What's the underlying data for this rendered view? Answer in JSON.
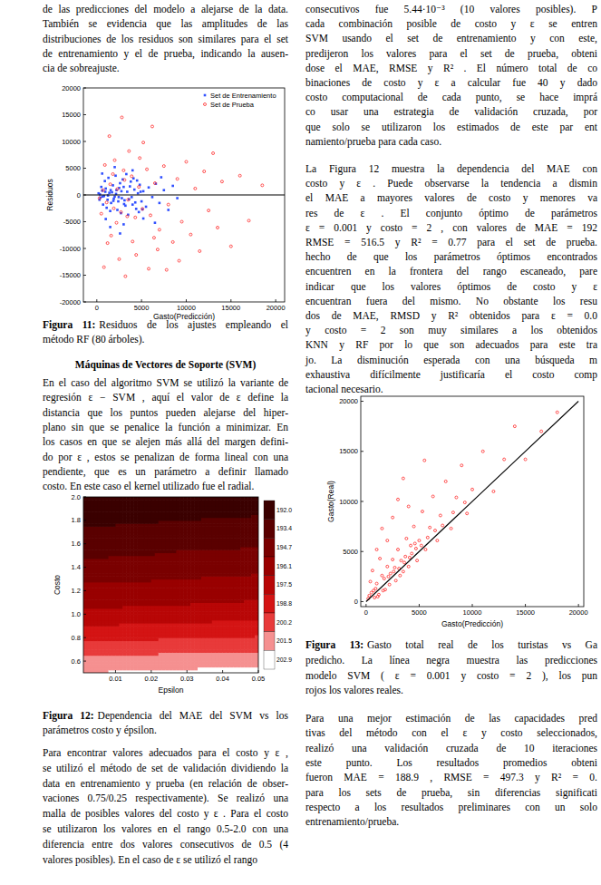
{
  "text": {
    "left_p0": [
      "de las predicciones del modelo a alejarse de la data.",
      "También se evidencia que las amplitudes de las",
      "distribuciones de los residuos son similares para el set",
      "de entrenamiento y el de prueba, indicando la ausen-",
      "cia de sobreajuste."
    ],
    "fig11_caption": {
      "label": "Figura 11:",
      "lines": [
        "Residuos de los ajustes empleando el",
        "método RF (80 árboles)."
      ]
    },
    "svm_heading": "Máquinas de Vectores de Soporte (SVM)",
    "left_p1": [
      "En el caso del algoritmo SVM se utilizó la variante de",
      "regresión ε − SVM , aquí el valor de ε define la",
      "distancia que los puntos pueden alejarse del hiper-",
      "plano sin que se penalice la función a minimizar. En",
      "los casos en que se alejen más allá del margen defini-",
      "do por ε , estos se penalizan de forma lineal con una",
      "pendiente, que es un parámetro a definir llamado",
      "costo. En este caso el kernel utilizado fue el radial."
    ],
    "fig12_caption": {
      "label": "Figura 12:",
      "lines": [
        "Dependencia del MAE del SVM vs los",
        "parámetros costo y épsilon."
      ]
    },
    "left_p2": [
      "Para encontrar valores adecuados para el costo y ε ,",
      "se utilizó el método de set de validación dividiendo la",
      "data en entrenamiento y prueba (en relación de obser-",
      "vaciones 0.75/0.25 respectivamente). Se realizó una",
      "malla de posibles valores del costo y ε . Para el costo",
      "se utilizaron los valores en el rango 0.5-2.0 con una",
      "diferencia entre dos valores consecutivos de 0.5 (4",
      "valores posibles). En el caso de ε se utilizó el rango"
    ],
    "right_p1": [
      "consecutivos fue 5.44·10⁻³ (10 valores posibles). P",
      "cada combinación posible de costo y ε se entren",
      "SVM usando el set de entrenamiento y con este,",
      "predijeron los valores para el set de prueba, obteni",
      "dose el MAE, RMSE y R² . El número total de co",
      "binaciones de costo y ε a calcular fue 40 y dado",
      "costo computacional de cada punto, se hace imprá",
      "co usar una estrategia de validación cruzada, por",
      "que solo se utilizaron los estimados de este par ent",
      "namiento/prueba para cada caso."
    ],
    "right_p2": [
      "La Figura 12 muestra la dependencia del MAE con",
      "costo y ε . Puede observarse la tendencia a dismin",
      "el MAE a mayores valores de costo y menores va",
      "res de ε . El conjunto óptimo de parámetros",
      "ε = 0.001 y costo = 2 , con valores de MAE = 192",
      "RMSE = 516.5 y R² = 0.77 para el set de prueba.",
      "hecho de que los parámetros óptimos encontrados",
      "encuentren en la frontera del rango escaneado, pare",
      "indicar que los valores óptimos de costo y ε",
      "encuentran fuera del mismo. No obstante los resu",
      "dos de MAE, RMSD y R² obtenidos para ε = 0.0",
      "y costo = 2 son muy similares a los obtenidos",
      "KNN y RF por lo que son adecuados para este tra",
      "jo. La disminución esperada con una búsqueda m",
      "exhaustiva difícilmente justificaría el costo comp",
      "tacional necesario."
    ],
    "fig13_caption": {
      "label": "Figura 13:",
      "lines": [
        "Gasto total real de los turistas vs Ga",
        "predicho. La línea negra muestra las predicciones",
        "modelo SVM ( ε = 0.001 y costo = 2 ), los pun",
        "rojos los valores reales."
      ]
    },
    "right_p3": [
      "Para una mejor estimación de las capacidades pred",
      "tivas del método con el ε y costo seleccionados,",
      "realizó una validación cruzada de 10 iteraciones",
      "este punto. Los resultados promedios obteni",
      "fueron MAE = 188.9 , RMSE = 497.3 y R² = 0.",
      "para los sets de prueba, sin diferencias significati",
      "respecto a los resultados preliminares con un solo",
      "entrenamiento/prueba."
    ]
  },
  "chart_data": [
    {
      "type": "scatter",
      "xlabel": "Gasto(Predicción)",
      "ylabel": "Residuos",
      "xlim": [
        -1500,
        21000
      ],
      "ylim": [
        -20000,
        20000
      ],
      "xticks": [
        0,
        5000,
        10000,
        15000,
        20000
      ],
      "yticks": [
        -20000,
        -15000,
        -10000,
        -5000,
        0,
        5000,
        10000,
        15000,
        20000
      ],
      "legend": "top-right",
      "series": [
        {
          "name": "Set de Entrenamiento",
          "color": "#3050ff",
          "marker": "square",
          "x": [
            200,
            400,
            600,
            800,
            1000,
            1200,
            1400,
            1600,
            1800,
            2000,
            2200,
            2400,
            2600,
            2800,
            3000,
            3200,
            3400,
            3600,
            3800,
            4000,
            4200,
            4400,
            4600,
            4800,
            5000,
            5200,
            5500,
            5800,
            6200,
            6600,
            7000,
            7500,
            8000,
            8500,
            9000,
            300,
            500,
            700,
            900,
            1100,
            1300,
            1500,
            1700,
            1900,
            2100,
            2300,
            2500,
            2700,
            2900,
            3100,
            3300,
            3500,
            3700,
            3900,
            4100,
            4300,
            4500,
            4700,
            4900,
            5100,
            350,
            650,
            950,
            1250,
            1550,
            1850,
            2150,
            2450,
            2750,
            3050,
            1000,
            2000,
            3000,
            600,
            1500,
            2600,
            4000,
            5200,
            6500,
            7200
          ],
          "values": [
            300,
            -500,
            800,
            -200,
            1200,
            -900,
            400,
            -1500,
            1800,
            -300,
            900,
            -1200,
            2200,
            -600,
            1500,
            -2000,
            600,
            -800,
            2500,
            -1800,
            1000,
            -2600,
            300,
            1900,
            -1200,
            700,
            -2200,
            1400,
            -400,
            2100,
            -1500,
            900,
            -2800,
            1700,
            -600,
            -900,
            1500,
            -1800,
            2600,
            -2400,
            3200,
            -3000,
            500,
            -700,
            3600,
            -2800,
            1300,
            -3400,
            2900,
            -1000,
            3900,
            -3700,
            1600,
            -400,
            3100,
            -1400,
            2700,
            -3200,
            600,
            -2700,
            100,
            -300,
            600,
            -100,
            900,
            -1100,
            200,
            -400,
            700,
            -1700,
            -4500,
            5200,
            -5500,
            4000,
            -6000,
            -7200,
            4600,
            -4400,
            -5200,
            3300
          ]
        },
        {
          "name": "Set de Prueba",
          "color": "#ff2a2a",
          "marker": "circle",
          "x": [
            300,
            700,
            1100,
            1500,
            1900,
            2300,
            2700,
            3100,
            3500,
            3900,
            4300,
            4700,
            5100,
            5600,
            6000,
            6500,
            7000,
            7500,
            8000,
            8500,
            9000,
            9500,
            10000,
            10500,
            11000,
            11500,
            12000,
            12500,
            13000,
            13500,
            14000,
            15000,
            16000,
            17000,
            18500,
            1200,
            2500,
            3200,
            800,
            4400,
            5800,
            6800,
            2000,
            3600,
            1400,
            5200,
            900,
            6200,
            2800,
            7800,
            1600,
            4000,
            3000,
            500,
            1800,
            2200,
            3400,
            4800,
            6400,
            9200
          ],
          "values": [
            -600,
            900,
            -1400,
            2000,
            -2500,
            1100,
            -3200,
            2800,
            -900,
            3500,
            -4200,
            1500,
            -2600,
            4800,
            -3800,
            2200,
            -6500,
            5400,
            -1800,
            -8800,
            3000,
            -5000,
            6200,
            -7400,
            1200,
            -10500,
            4400,
            -2900,
            7800,
            -6100,
            2500,
            -9600,
            3600,
            -4800,
            1800,
            -9000,
            -12000,
            -15200,
            -13500,
            -11200,
            -13800,
            -10200,
            6500,
            8200,
            11000,
            9800,
            5600,
            12800,
            14500,
            -14000,
            -7600,
            -8700,
            4600,
            -3500,
            3900,
            -5200,
            -4000,
            6900,
            -8000,
            -12300
          ]
        },
        {
          "type": "line",
          "color": "#000000",
          "x": [
            -1500,
            21000
          ],
          "values": [
            0,
            0
          ]
        }
      ]
    },
    {
      "type": "heatmap",
      "xlabel": "Epsilon",
      "ylabel": "Costo",
      "xlim": [
        0.001,
        0.05
      ],
      "ylim": [
        0.5,
        2
      ],
      "xticks": [
        0.01,
        0.02,
        0.03,
        0.04,
        0.05
      ],
      "yticks": [
        0.6,
        0.8,
        {
          "value": 1,
          "label": "1.0"
        },
        1.2,
        1.4,
        1.6,
        1.8,
        {
          "value": 2,
          "label": "2.0"
        }
      ],
      "x": [
        0.001,
        0.00644,
        0.01189,
        0.01733,
        0.02278,
        0.02822,
        0.03367,
        0.03911,
        0.04456,
        0.05
      ],
      "y": [
        0.5,
        1,
        1.5,
        2
      ],
      "cells": [
        [
          203.0,
          203.0,
          203.1,
          203.1,
          203.2,
          203.2,
          203.3,
          203.3,
          203.4,
          203.4
        ],
        [
          197.8,
          197.8,
          197.9,
          197.9,
          198.0,
          198.0,
          198.1,
          198.2,
          198.2,
          198.3
        ],
        [
          194.6,
          194.6,
          194.7,
          194.7,
          194.8,
          194.9,
          194.9,
          195.0,
          195.0,
          195.1
        ],
        [
          192.2,
          192.2,
          192.3,
          192.3,
          192.4,
          192.4,
          192.5,
          192.5,
          192.6,
          192.6
        ]
      ],
      "colorbar": {
        "ticks": [
          {
            "value": 192,
            "label": "192.0"
          },
          193.4,
          194.7,
          196.1,
          197.5,
          198.8,
          200.2,
          201.5,
          202.9
        ],
        "colors": [
          "#3a0000",
          "#5a0000",
          "#7a0000",
          "#990000",
          "#b80606",
          "#d41414",
          "#e83a3a",
          "#f59090",
          "#ffffff"
        ]
      }
    },
    {
      "type": "scatter",
      "xlabel": "Gasto(Predicción)",
      "ylabel": "Gasto(Real)",
      "xlim": [
        -500,
        20500
      ],
      "ylim": [
        -500,
        20500
      ],
      "xticks": [
        0,
        5000,
        10000,
        15000,
        20000
      ],
      "yticks": [
        0,
        5000,
        10000,
        15000,
        20000
      ],
      "series": [
        {
          "color": "#ff2a2a",
          "marker": "circle",
          "x": [
            200,
            500,
            800,
            1000,
            1200,
            1500,
            1800,
            2000,
            2200,
            2500,
            2800,
            3000,
            3200,
            3500,
            3800,
            4000,
            4300,
            4500,
            4800,
            5000,
            5300,
            5600,
            6000,
            6300,
            6700,
            7000,
            7500,
            8000,
            8500,
            9000,
            9500,
            10000,
            11000,
            12000,
            13000,
            14000,
            15000,
            16500,
            18000,
            1000,
            1500,
            2500,
            3000,
            2000,
            600,
            1300,
            3500,
            4000,
            5500,
            400,
            700,
            1600,
            2300,
            2700,
            3300,
            3700,
            4200,
            4600,
            300,
            900,
            1100,
            1700,
            2100,
            2600,
            3100,
            3600,
            4100,
            4700,
            5200,
            5800,
            6500,
            7200,
            8200,
            9300
          ],
          "values": [
            300,
            900,
            400,
            1800,
            700,
            2600,
            1200,
            3500,
            1700,
            4200,
            2100,
            5200,
            2600,
            3000,
            6300,
            3500,
            4800,
            7500,
            4100,
            6100,
            9000,
            5200,
            7400,
            10500,
            6100,
            8600,
            12000,
            7300,
            10400,
            13600,
            8800,
            11200,
            15000,
            11000,
            14200,
            17500,
            14200,
            17000,
            18900,
            5200,
            7300,
            8400,
            10200,
            6100,
            3100,
            4300,
            12300,
            9500,
            14100,
            2000,
            1100,
            1100,
            2800,
            3400,
            4100,
            4500,
            5600,
            5800,
            600,
            1300,
            500,
            2300,
            2500,
            3000,
            3300,
            3900,
            4400,
            5300,
            5600,
            6400,
            7100,
            7600,
            8900,
            9900
          ]
        },
        {
          "type": "line",
          "color": "#000000",
          "x": [
            0,
            20000
          ],
          "values": [
            0,
            20000
          ]
        }
      ]
    }
  ]
}
